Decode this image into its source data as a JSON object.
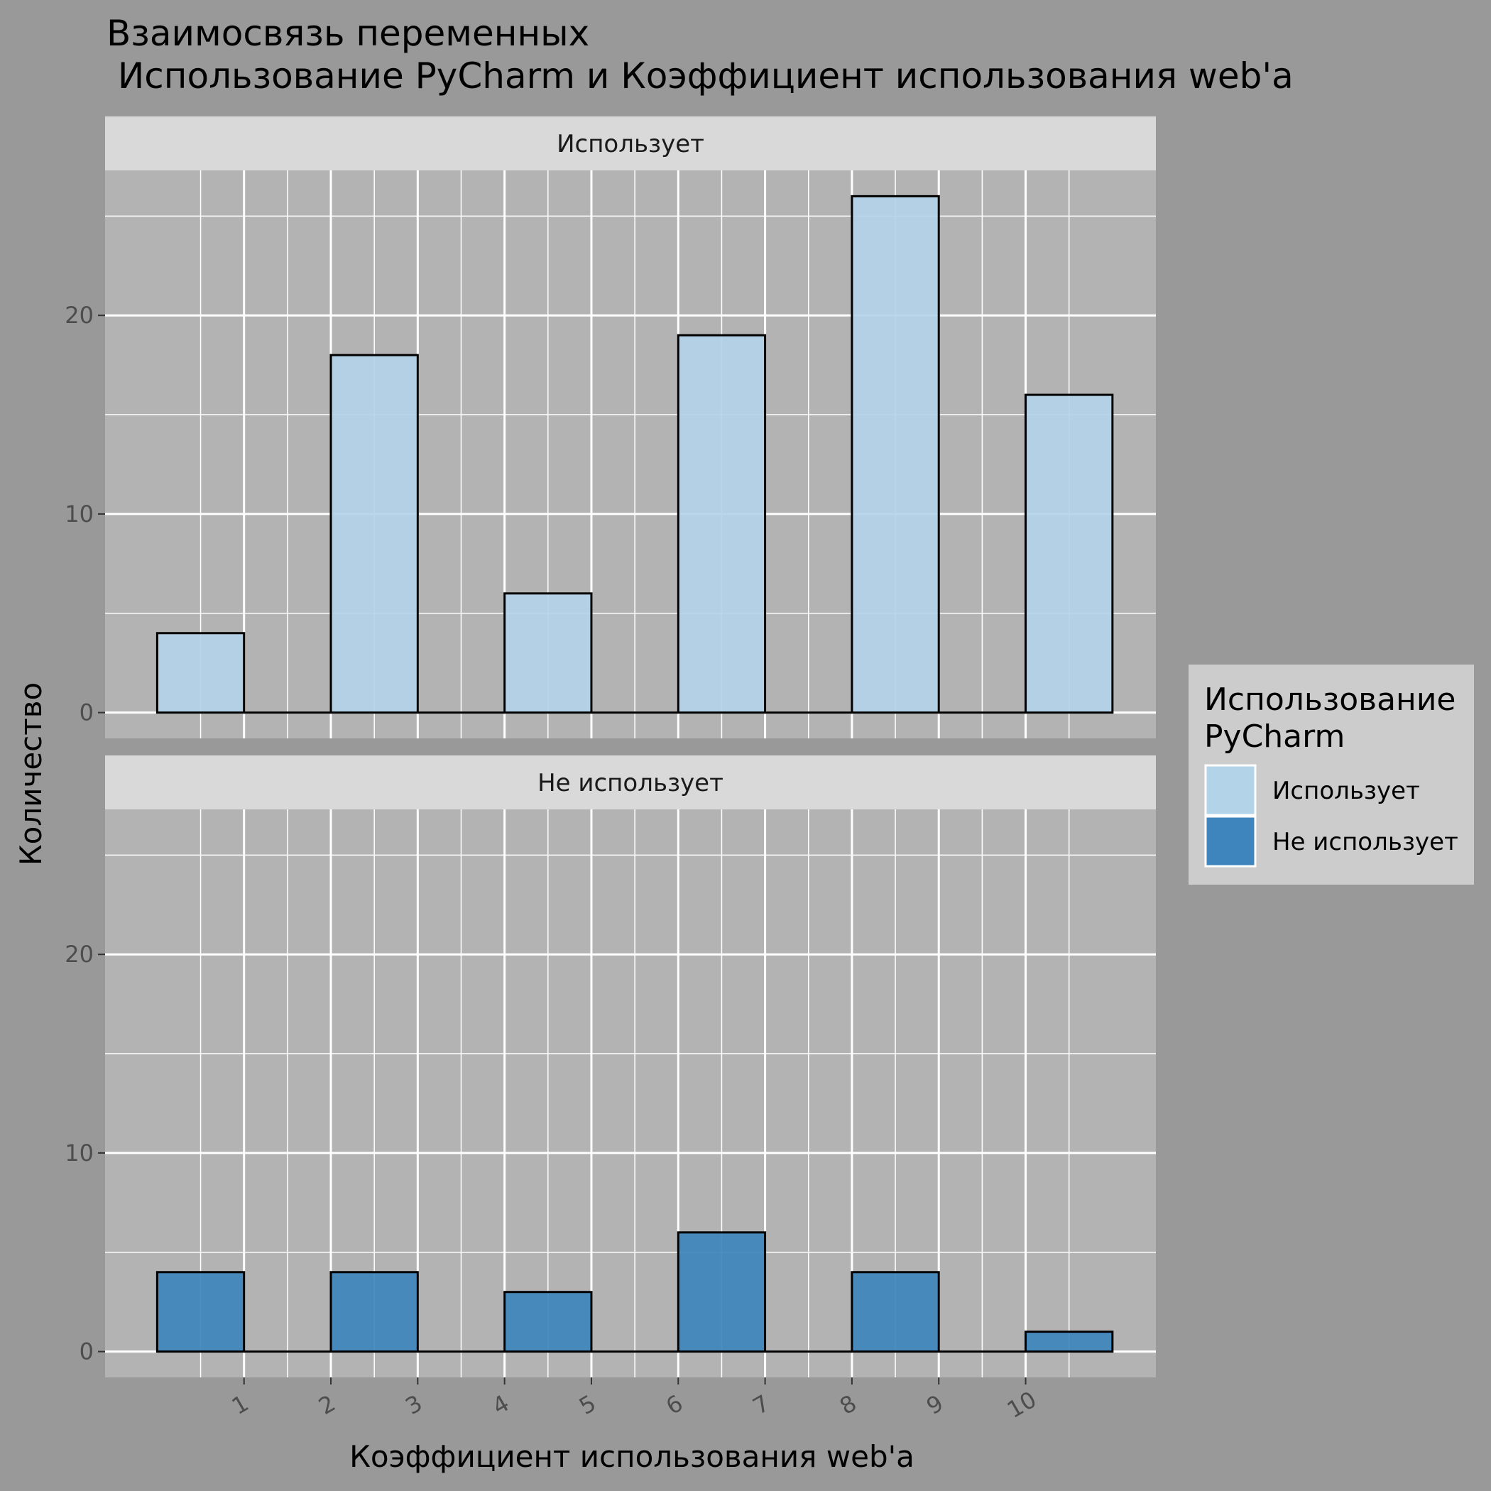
{
  "chart_data": {
    "type": "bar",
    "title": "Взаимосвязь переменных",
    "subtitle": " Использование PyCharm и Коэффициент использования web'а",
    "xlabel": "Коэффициент использования web'а",
    "ylabel": "Количество",
    "x_ticks": [
      "1",
      "2",
      "3",
      "4",
      "5",
      "6",
      "7",
      "8",
      "9",
      "10"
    ],
    "y_ticks": [
      "0",
      "10",
      "20"
    ],
    "xlim": [
      -0.6,
      11.5
    ],
    "ylim": [
      -1.3,
      27.3
    ],
    "bar_width": 1.0,
    "grid": true,
    "legend": {
      "title_line1": "Использование",
      "title_line2": "PyCharm",
      "position": "right"
    },
    "series": [
      {
        "name": "Использует",
        "color": "#b3d3e8",
        "x": [
          0.5,
          2.5,
          4.5,
          6.5,
          8.5,
          10.5
        ],
        "values": [
          4,
          18,
          6,
          19,
          26,
          16
        ]
      },
      {
        "name": "Не использует",
        "color": "#3f85bd",
        "x": [
          0.5,
          2.5,
          4.5,
          6.5,
          8.5,
          10.5
        ],
        "values": [
          4,
          4,
          3,
          6,
          4,
          1
        ]
      }
    ]
  }
}
